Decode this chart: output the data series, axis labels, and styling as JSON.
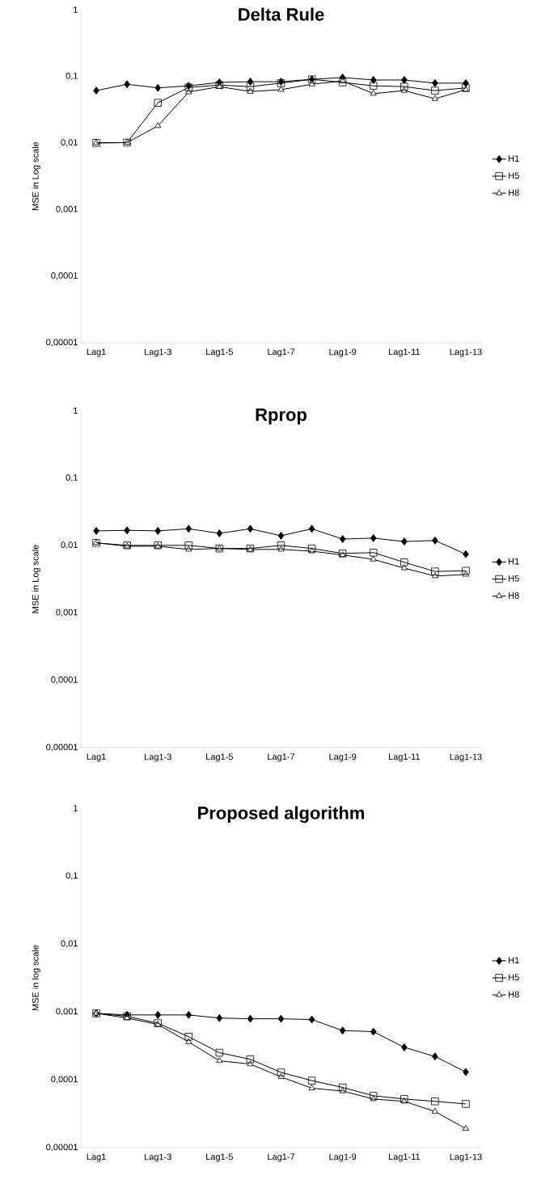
{
  "chart_data": [
    {
      "type": "line",
      "title": "Delta Rule",
      "ylabel": "MSE in Log scale",
      "log": true,
      "legend": "right",
      "categories": [
        "Lag1",
        null,
        "Lag1-3",
        null,
        "Lag1-5",
        null,
        "Lag1-7",
        null,
        "Lag1-9",
        null,
        "Lag1-11",
        null,
        "Lag1-13"
      ],
      "ylim": [
        1e-05,
        1
      ],
      "yticks": [
        {
          "value": 1e-05,
          "label": "0,00001"
        },
        {
          "value": 0.0001,
          "label": "0,0001"
        },
        {
          "value": 0.001,
          "label": "0,001"
        },
        {
          "value": 0.01,
          "label": "0,01"
        },
        {
          "value": 0.1,
          "label": "0,1"
        },
        1
      ],
      "series": [
        {
          "name": "H1",
          "color": "#000000",
          "marker": "diamond",
          "values": [
            0.061,
            0.076,
            0.067,
            0.072,
            0.081,
            0.083,
            0.083,
            0.09,
            0.096,
            0.088,
            0.088,
            0.079,
            0.079
          ]
        },
        {
          "name": "H5",
          "color": "#000000",
          "marker": "square",
          "values": [
            0.01,
            0.0101,
            0.04,
            0.068,
            0.074,
            0.07,
            0.079,
            0.09,
            0.081,
            0.072,
            0.07,
            0.061,
            0.067
          ]
        },
        {
          "name": "H8",
          "color": "#000000",
          "marker": "triangle",
          "values": [
            0.01,
            0.0101,
            0.018,
            0.058,
            0.07,
            0.059,
            0.063,
            0.076,
            0.085,
            0.055,
            0.061,
            0.046,
            0.063
          ]
        }
      ]
    },
    {
      "type": "line",
      "title": "Rprop",
      "ylabel": "MSE in Log scale",
      "log": true,
      "legend": "right",
      "categories": [
        "Lag1",
        null,
        "Lag1-3",
        null,
        "Lag1-5",
        null,
        "Lag1-7",
        null,
        "Lag1-9",
        null,
        "Lag1-11",
        null,
        "Lag1-13"
      ],
      "ylim": [
        1e-05,
        1
      ],
      "yticks": [
        {
          "value": 1e-05,
          "label": "0,00001"
        },
        {
          "value": 0.0001,
          "label": "0,0001"
        },
        {
          "value": 0.001,
          "label": "0,001"
        },
        {
          "value": 0.01,
          "label": "0,01"
        },
        {
          "value": 0.1,
          "label": "0,1"
        },
        1
      ],
      "series": [
        {
          "name": "H1",
          "color": "#000000",
          "marker": "diamond",
          "values": [
            0.0164,
            0.0167,
            0.0164,
            0.0176,
            0.0151,
            0.0176,
            0.0139,
            0.0176,
            0.0124,
            0.0128,
            0.0114,
            0.0118,
            0.0074
          ]
        },
        {
          "name": "H5",
          "color": "#000000",
          "marker": "square",
          "values": [
            0.0109,
            0.01,
            0.01,
            0.01,
            0.009,
            0.009,
            0.01,
            0.009,
            0.0076,
            0.0078,
            0.0056,
            0.0041,
            0.0042
          ]
        },
        {
          "name": "H8",
          "color": "#000000",
          "marker": "triangle",
          "values": [
            0.0109,
            0.0097,
            0.0097,
            0.0087,
            0.009,
            0.0087,
            0.0087,
            0.0082,
            0.0072,
            0.0062,
            0.0046,
            0.0035,
            0.0037
          ]
        }
      ]
    },
    {
      "type": "line",
      "title": "Proposed algorithm",
      "ylabel": "MSE in log scale",
      "log": true,
      "legend": "right",
      "categories": [
        "Lag1",
        null,
        "Lag1-3",
        null,
        "Lag1-5",
        null,
        "Lag1-7",
        null,
        "Lag1-9",
        null,
        "Lag1-11",
        null,
        "Lag1-13"
      ],
      "ylim": [
        1e-05,
        1
      ],
      "yticks": [
        {
          "value": 1e-05,
          "label": "0,00001"
        },
        {
          "value": 0.0001,
          "label": "0,0001"
        },
        {
          "value": 0.001,
          "label": "0,001"
        },
        {
          "value": 0.01,
          "label": "0,01"
        },
        {
          "value": 0.1,
          "label": "0,1"
        },
        1
      ],
      "series": [
        {
          "name": "H1",
          "color": "#000000",
          "marker": "diamond",
          "values": [
            0.00095,
            0.0009,
            0.0009,
            0.0009,
            0.00081,
            0.00079,
            0.00079,
            0.00077,
            0.00053,
            0.00051,
            0.0003,
            0.00022,
            0.00013
          ]
        },
        {
          "name": "H5",
          "color": "#000000",
          "marker": "square",
          "values": [
            0.00095,
            0.00086,
            0.00068,
            0.00043,
            0.00025,
            0.0002,
            0.000128,
            9.7e-05,
            7.7e-05,
            5.8e-05,
            5.2e-05,
            4.8e-05,
            4.4e-05
          ]
        },
        {
          "name": "H8",
          "color": "#000000",
          "marker": "triangle",
          "values": [
            0.00095,
            0.00081,
            0.00065,
            0.00036,
            0.00019,
            0.00017,
            0.00011,
            7.5e-05,
            6.8e-05,
            5.2e-05,
            4.8e-05,
            3.4e-05,
            1.9e-05
          ]
        }
      ]
    }
  ]
}
